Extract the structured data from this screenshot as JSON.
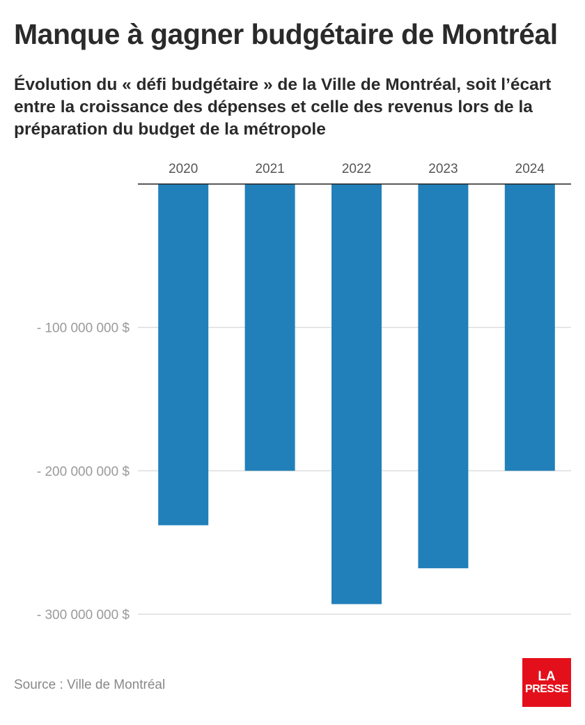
{
  "colors": {
    "bar": "#2180b9",
    "grid": "#dddddd",
    "baseline": "#222222",
    "logo_bg": "#e3101b"
  },
  "chart_data": {
    "type": "bar",
    "title": "Manque à gagner budgétaire de Montréal",
    "subtitle": "Évolution du « défi budgétaire » de la Ville de Montréal, soit l’écart entre la croissance des dépenses et celle des revenus lors de la préparation du budget de la métropole",
    "categories": [
      "2020",
      "2021",
      "2022",
      "2023",
      "2024"
    ],
    "values": [
      -238000000,
      -200000000,
      -293000000,
      -268000000,
      -200000000
    ],
    "ylim": [
      -300000000,
      0
    ],
    "y_ticks": [
      {
        "value": -100000000,
        "label": "- 100 000 000 $"
      },
      {
        "value": -200000000,
        "label": "- 200 000 000 $"
      },
      {
        "value": -300000000,
        "label": "- 300 000 000 $"
      }
    ],
    "xlabel": "",
    "ylabel": "",
    "grid": true,
    "x_axis_position": "top"
  },
  "source": "Source : Ville de Montréal",
  "logo": {
    "line1": "LA",
    "line2": "PRESSE",
    "icon": "la-presse-logo"
  }
}
